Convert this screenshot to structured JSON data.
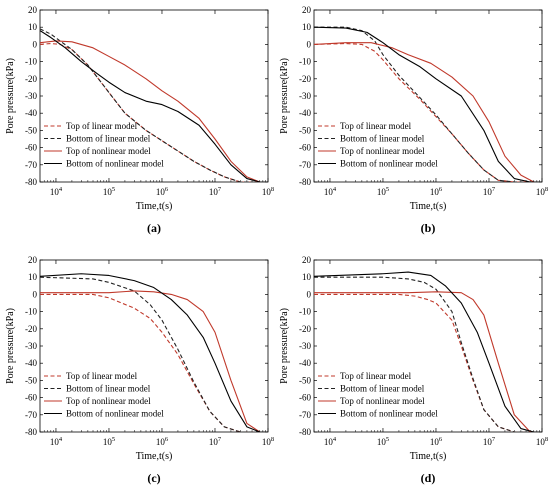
{
  "chart_data": [
    {
      "type": "line",
      "panel_label": "(a)",
      "xlabel": "Time,t(s)",
      "ylabel": "Pore pressure(kPa)",
      "xscale": "log",
      "xlim": [
        5000,
        100000000
      ],
      "ylim": [
        -80,
        20
      ],
      "xticks": [
        10000,
        100000,
        1000000,
        10000000,
        100000000
      ],
      "yticks": [
        20,
        10,
        0,
        -10,
        -20,
        -30,
        -40,
        -50,
        -60,
        -70,
        -80
      ],
      "legend_position": "lower-left",
      "series": [
        {
          "name": "Top of linear model",
          "color": "#c0392b",
          "dash": true,
          "points": [
            [
              5000,
              0
            ],
            [
              8000,
              0.5
            ],
            [
              12000,
              0
            ],
            [
              20000,
              -3
            ],
            [
              40000,
              -12
            ],
            [
              100000,
              -28
            ],
            [
              200000,
              -40
            ],
            [
              500000,
              -50
            ],
            [
              1000000,
              -56
            ],
            [
              2000000,
              -62
            ],
            [
              4000000,
              -68
            ],
            [
              8000000,
              -73
            ],
            [
              15000000,
              -77
            ],
            [
              30000000,
              -80
            ],
            [
              100000000,
              -80
            ]
          ]
        },
        {
          "name": "Bottom of linear model",
          "color": "#222222",
          "dash": true,
          "points": [
            [
              5000,
              9
            ],
            [
              8000,
              6
            ],
            [
              12000,
              2
            ],
            [
              20000,
              -3
            ],
            [
              40000,
              -12
            ],
            [
              100000,
              -28
            ],
            [
              200000,
              -40
            ],
            [
              500000,
              -50
            ],
            [
              1000000,
              -56
            ],
            [
              2000000,
              -62
            ],
            [
              4000000,
              -68
            ],
            [
              8000000,
              -73
            ],
            [
              15000000,
              -77
            ],
            [
              30000000,
              -80
            ],
            [
              100000000,
              -80
            ]
          ]
        },
        {
          "name": "Top of nonlinear model",
          "color": "#c0392b",
          "dash": false,
          "points": [
            [
              5000,
              1
            ],
            [
              10000,
              2
            ],
            [
              20000,
              1.5
            ],
            [
              50000,
              -2
            ],
            [
              100000,
              -7
            ],
            [
              200000,
              -12
            ],
            [
              500000,
              -20
            ],
            [
              1000000,
              -27
            ],
            [
              2000000,
              -33
            ],
            [
              5000000,
              -43
            ],
            [
              10000000,
              -55
            ],
            [
              20000000,
              -68
            ],
            [
              40000000,
              -77
            ],
            [
              70000000,
              -80
            ],
            [
              100000000,
              -80
            ]
          ]
        },
        {
          "name": "Bottom of nonlinear model",
          "color": "#000000",
          "dash": false,
          "points": [
            [
              5000,
              8
            ],
            [
              8000,
              4
            ],
            [
              15000,
              -2
            ],
            [
              30000,
              -10
            ],
            [
              60000,
              -17
            ],
            [
              100000,
              -22
            ],
            [
              200000,
              -28
            ],
            [
              500000,
              -33
            ],
            [
              1000000,
              -35
            ],
            [
              2000000,
              -39
            ],
            [
              5000000,
              -47
            ],
            [
              10000000,
              -58
            ],
            [
              20000000,
              -70
            ],
            [
              40000000,
              -78
            ],
            [
              70000000,
              -80
            ],
            [
              100000000,
              -80
            ]
          ]
        }
      ]
    },
    {
      "type": "line",
      "panel_label": "(b)",
      "xlabel": "Time,t(s)",
      "ylabel": "Pore pressure(kPa)",
      "xscale": "log",
      "xlim": [
        5000,
        100000000
      ],
      "ylim": [
        -80,
        20
      ],
      "xticks": [
        10000,
        100000,
        1000000,
        10000000,
        100000000
      ],
      "yticks": [
        20,
        10,
        0,
        -10,
        -20,
        -30,
        -40,
        -50,
        -60,
        -70,
        -80
      ],
      "legend_position": "lower-left",
      "series": [
        {
          "name": "Top of linear model",
          "color": "#c0392b",
          "dash": true,
          "points": [
            [
              5000,
              0
            ],
            [
              20000,
              0.5
            ],
            [
              40000,
              0
            ],
            [
              70000,
              -4
            ],
            [
              100000,
              -9
            ],
            [
              200000,
              -20
            ],
            [
              500000,
              -32
            ],
            [
              1000000,
              -42
            ],
            [
              2000000,
              -52
            ],
            [
              4000000,
              -63
            ],
            [
              8000000,
              -73
            ],
            [
              15000000,
              -79
            ],
            [
              30000000,
              -80
            ],
            [
              100000000,
              -80
            ]
          ]
        },
        {
          "name": "Bottom of linear model",
          "color": "#222222",
          "dash": true,
          "points": [
            [
              5000,
              10
            ],
            [
              20000,
              10
            ],
            [
              40000,
              8
            ],
            [
              70000,
              2
            ],
            [
              100000,
              -6
            ],
            [
              200000,
              -18
            ],
            [
              500000,
              -31
            ],
            [
              1000000,
              -41
            ],
            [
              2000000,
              -52
            ],
            [
              4000000,
              -63
            ],
            [
              8000000,
              -73
            ],
            [
              15000000,
              -79
            ],
            [
              30000000,
              -80
            ],
            [
              100000000,
              -80
            ]
          ]
        },
        {
          "name": "Top of nonlinear model",
          "color": "#c0392b",
          "dash": false,
          "points": [
            [
              5000,
              0
            ],
            [
              20000,
              1
            ],
            [
              60000,
              1
            ],
            [
              150000,
              -2
            ],
            [
              300000,
              -6
            ],
            [
              800000,
              -11
            ],
            [
              2000000,
              -19
            ],
            [
              5000000,
              -30
            ],
            [
              10000000,
              -45
            ],
            [
              20000000,
              -65
            ],
            [
              40000000,
              -76
            ],
            [
              70000000,
              -80
            ],
            [
              100000000,
              -80
            ]
          ]
        },
        {
          "name": "Bottom of nonlinear model",
          "color": "#000000",
          "dash": false,
          "points": [
            [
              5000,
              10
            ],
            [
              20000,
              9.5
            ],
            [
              50000,
              7
            ],
            [
              100000,
              1
            ],
            [
              200000,
              -6
            ],
            [
              500000,
              -13
            ],
            [
              1000000,
              -20
            ],
            [
              3000000,
              -30
            ],
            [
              8000000,
              -50
            ],
            [
              15000000,
              -68
            ],
            [
              30000000,
              -78
            ],
            [
              60000000,
              -80
            ],
            [
              100000000,
              -80
            ]
          ]
        }
      ]
    },
    {
      "type": "line",
      "panel_label": "(c)",
      "xlabel": "Time,t(s)",
      "ylabel": "Pore pressure(kPa)",
      "xscale": "log",
      "xlim": [
        5000,
        100000000
      ],
      "ylim": [
        -80,
        20
      ],
      "xticks": [
        10000,
        100000,
        1000000,
        10000000,
        100000000
      ],
      "yticks": [
        20,
        10,
        0,
        -10,
        -20,
        -30,
        -40,
        -50,
        -60,
        -70,
        -80
      ],
      "legend_position": "lower-left",
      "series": [
        {
          "name": "Top of linear model",
          "color": "#c0392b",
          "dash": true,
          "points": [
            [
              5000,
              0
            ],
            [
              50000,
              0
            ],
            [
              100000,
              -2
            ],
            [
              300000,
              -8
            ],
            [
              600000,
              -14
            ],
            [
              1000000,
              -22
            ],
            [
              2000000,
              -35
            ],
            [
              4000000,
              -52
            ],
            [
              8000000,
              -68
            ],
            [
              15000000,
              -77
            ],
            [
              30000000,
              -80
            ],
            [
              100000000,
              -80
            ]
          ]
        },
        {
          "name": "Bottom of linear model",
          "color": "#222222",
          "dash": true,
          "points": [
            [
              5000,
              10
            ],
            [
              50000,
              9
            ],
            [
              100000,
              7
            ],
            [
              300000,
              2
            ],
            [
              600000,
              -6
            ],
            [
              1000000,
              -15
            ],
            [
              2000000,
              -32
            ],
            [
              4000000,
              -51
            ],
            [
              8000000,
              -68
            ],
            [
              15000000,
              -77
            ],
            [
              30000000,
              -80
            ],
            [
              100000000,
              -80
            ]
          ]
        },
        {
          "name": "Top of nonlinear model",
          "color": "#c0392b",
          "dash": false,
          "points": [
            [
              5000,
              1
            ],
            [
              100000,
              1
            ],
            [
              300000,
              2
            ],
            [
              700000,
              1.5
            ],
            [
              1500000,
              0
            ],
            [
              3000000,
              -3
            ],
            [
              6000000,
              -10
            ],
            [
              10000000,
              -22
            ],
            [
              20000000,
              -50
            ],
            [
              40000000,
              -75
            ],
            [
              70000000,
              -80
            ],
            [
              100000000,
              -80
            ]
          ]
        },
        {
          "name": "Bottom of nonlinear model",
          "color": "#000000",
          "dash": false,
          "points": [
            [
              5000,
              10.5
            ],
            [
              30000,
              12
            ],
            [
              100000,
              11
            ],
            [
              300000,
              8
            ],
            [
              700000,
              4
            ],
            [
              1500000,
              -3
            ],
            [
              3000000,
              -12
            ],
            [
              6000000,
              -25
            ],
            [
              10000000,
              -40
            ],
            [
              20000000,
              -62
            ],
            [
              40000000,
              -77
            ],
            [
              70000000,
              -80
            ],
            [
              100000000,
              -80
            ]
          ]
        }
      ]
    },
    {
      "type": "line",
      "panel_label": "(d)",
      "xlabel": "Time,t(s)",
      "ylabel": "Pore pressure(kPa)",
      "xscale": "log",
      "xlim": [
        5000,
        100000000
      ],
      "ylim": [
        -80,
        20
      ],
      "xticks": [
        10000,
        100000,
        1000000,
        10000000,
        100000000
      ],
      "yticks": [
        20,
        10,
        0,
        -10,
        -20,
        -30,
        -40,
        -50,
        -60,
        -70,
        -80
      ],
      "legend_position": "lower-left",
      "series": [
        {
          "name": "Top of linear model",
          "color": "#c0392b",
          "dash": true,
          "points": [
            [
              5000,
              0
            ],
            [
              200000,
              0
            ],
            [
              400000,
              -1
            ],
            [
              700000,
              -3
            ],
            [
              1000000,
              -5
            ],
            [
              2000000,
              -15
            ],
            [
              3000000,
              -30
            ],
            [
              5000000,
              -50
            ],
            [
              8000000,
              -67
            ],
            [
              15000000,
              -77
            ],
            [
              30000000,
              -80
            ],
            [
              100000000,
              -80
            ]
          ]
        },
        {
          "name": "Bottom of linear model",
          "color": "#222222",
          "dash": true,
          "points": [
            [
              5000,
              10
            ],
            [
              100000,
              10
            ],
            [
              300000,
              9
            ],
            [
              600000,
              7
            ],
            [
              1000000,
              3
            ],
            [
              2000000,
              -10
            ],
            [
              3000000,
              -28
            ],
            [
              5000000,
              -49
            ],
            [
              8000000,
              -67
            ],
            [
              15000000,
              -77
            ],
            [
              30000000,
              -80
            ],
            [
              100000000,
              -80
            ]
          ]
        },
        {
          "name": "Top of nonlinear model",
          "color": "#c0392b",
          "dash": false,
          "points": [
            [
              5000,
              1
            ],
            [
              300000,
              1
            ],
            [
              1000000,
              1.5
            ],
            [
              3000000,
              1
            ],
            [
              5000000,
              -3
            ],
            [
              8000000,
              -12
            ],
            [
              15000000,
              -40
            ],
            [
              30000000,
              -70
            ],
            [
              60000000,
              -80
            ],
            [
              100000000,
              -80
            ]
          ]
        },
        {
          "name": "Bottom of nonlinear model",
          "color": "#000000",
          "dash": false,
          "points": [
            [
              5000,
              10.5
            ],
            [
              100000,
              12
            ],
            [
              300000,
              13
            ],
            [
              800000,
              11
            ],
            [
              1500000,
              5
            ],
            [
              3000000,
              -5
            ],
            [
              6000000,
              -22
            ],
            [
              10000000,
              -40
            ],
            [
              20000000,
              -65
            ],
            [
              40000000,
              -78
            ],
            [
              70000000,
              -80
            ],
            [
              100000000,
              -80
            ]
          ]
        }
      ]
    }
  ]
}
